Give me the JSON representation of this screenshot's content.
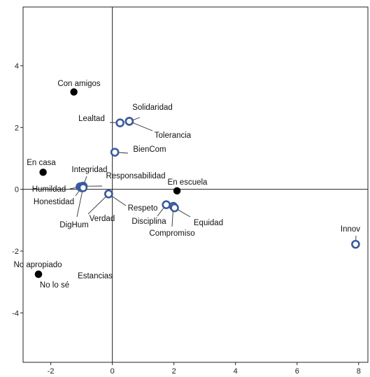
{
  "chart_data": {
    "type": "scatter",
    "title": "",
    "xlabel": "",
    "ylabel": "",
    "xlim": [
      -2.9,
      8.3
    ],
    "ylim": [
      -5.6,
      5.9
    ],
    "xticks": [
      -2,
      0,
      2,
      4,
      6,
      8
    ],
    "yticks": [
      -4,
      -2,
      0,
      2,
      4
    ],
    "grid": false,
    "reference_lines": {
      "x": 0,
      "y": 0
    },
    "colors": {
      "filled": "#000000",
      "open": "#3b5a9d"
    },
    "series": [
      {
        "marker": "filled-circle",
        "points": [
          {
            "label": "Con amigos",
            "x": -1.25,
            "y": 3.15
          },
          {
            "label": "En casa",
            "x": -2.25,
            "y": 0.55
          },
          {
            "label": "En escuela",
            "x": 2.1,
            "y": -0.05
          },
          {
            "label": "No apropiado",
            "x": -2.4,
            "y": -2.75
          },
          {
            "label": "No lo sé",
            "x": -2.4,
            "y": -2.75
          },
          {
            "label": "Estancias",
            "x": -2.4,
            "y": -2.75
          }
        ]
      },
      {
        "marker": "open-circle",
        "points": [
          {
            "label": "Solidaridad",
            "x": 0.55,
            "y": 2.2
          },
          {
            "label": "Lealtad",
            "x": 0.25,
            "y": 2.15
          },
          {
            "label": "Tolerancia",
            "x": 0.55,
            "y": 2.2
          },
          {
            "label": "BienCom",
            "x": 0.08,
            "y": 1.2
          },
          {
            "label": "Integridad",
            "x": -0.95,
            "y": 0.1
          },
          {
            "label": "Responsabilidad",
            "x": -0.95,
            "y": 0.1
          },
          {
            "label": "Humildad",
            "x": -1.05,
            "y": 0.08
          },
          {
            "label": "Honestidad",
            "x": -1.0,
            "y": 0.05
          },
          {
            "label": "DigHum",
            "x": -0.95,
            "y": 0.05
          },
          {
            "label": "Verdad",
            "x": -0.12,
            "y": -0.15
          },
          {
            "label": "Respeto",
            "x": -0.12,
            "y": -0.15
          },
          {
            "label": "Disciplina",
            "x": 1.75,
            "y": -0.5
          },
          {
            "label": "Compromiso",
            "x": 1.98,
            "y": -0.55
          },
          {
            "label": "Equidad",
            "x": 2.02,
            "y": -0.6
          },
          {
            "label": "Innov",
            "x": 7.9,
            "y": -1.78
          }
        ]
      }
    ]
  }
}
